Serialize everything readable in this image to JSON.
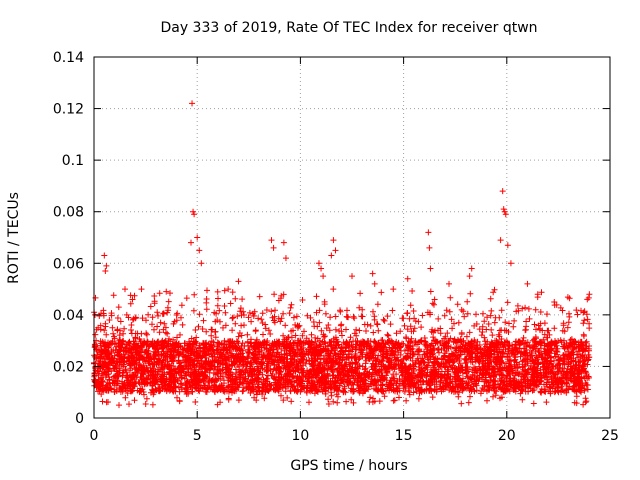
{
  "chart_data": {
    "type": "scatter",
    "title": "Day 333 of 2019, Rate Of TEC Index for receiver qtwn",
    "xlabel": "GPS time / hours",
    "ylabel": "ROTI / TECUs",
    "xlim": [
      0,
      25
    ],
    "ylim": [
      0,
      0.14
    ],
    "x_ticks": [
      0,
      5,
      10,
      15,
      20,
      25
    ],
    "x_tick_labels": [
      "0",
      "5",
      "10",
      "15",
      "20",
      "25"
    ],
    "y_ticks": [
      0,
      0.02,
      0.04,
      0.06,
      0.08,
      0.1,
      0.12,
      0.14
    ],
    "y_tick_labels": [
      "0",
      "0.02",
      "0.04",
      "0.06",
      "0.08",
      "0.1",
      "0.12",
      "0.14"
    ],
    "grid": true,
    "marker": "+",
    "marker_color": "#ff0000",
    "series": [
      {
        "name": "ROTI",
        "time_range_hours": [
          0,
          24
        ],
        "typical_band": [
          0.01,
          0.03
        ],
        "x": [
          4.75,
          4.8,
          4.85,
          4.7,
          5.0,
          5.1,
          5.2,
          19.8,
          19.85,
          19.9,
          19.95,
          19.7,
          20.05,
          20.2,
          16.2,
          16.25,
          16.3,
          11.6,
          11.7,
          11.5,
          10.9,
          11.0,
          11.1,
          8.6,
          8.7,
          9.2,
          9.3,
          0.5,
          0.6,
          0.55,
          13.5,
          13.6,
          14.5,
          18.2,
          18.3,
          21.5,
          22.3,
          23.9,
          24.0,
          2.3,
          3.5,
          1.2,
          6.5,
          7.0,
          12.5,
          17.2,
          15.2,
          21.0,
          0.05,
          0.2,
          0.1
        ],
        "y": [
          0.122,
          0.08,
          0.079,
          0.068,
          0.07,
          0.065,
          0.06,
          0.088,
          0.081,
          0.08,
          0.079,
          0.069,
          0.067,
          0.06,
          0.072,
          0.066,
          0.058,
          0.069,
          0.065,
          0.063,
          0.06,
          0.058,
          0.055,
          0.069,
          0.066,
          0.068,
          0.062,
          0.063,
          0.059,
          0.057,
          0.056,
          0.052,
          0.05,
          0.055,
          0.058,
          0.048,
          0.045,
          0.046,
          0.048,
          0.05,
          0.049,
          0.043,
          0.05,
          0.053,
          0.055,
          0.052,
          0.054,
          0.052,
          0.04,
          0.035,
          0.03
        ]
      }
    ]
  }
}
